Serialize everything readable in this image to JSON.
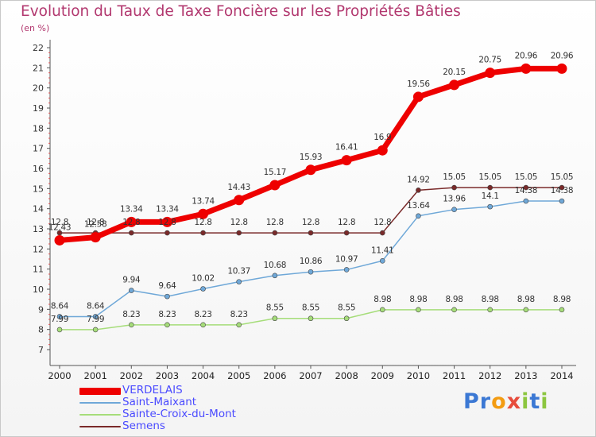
{
  "title": "Evolution du Taux de Taxe Foncière sur les Propriétés Bâties",
  "unit_label": "(en %)",
  "logo": {
    "text": "Proxiti",
    "letters": [
      "P",
      "r",
      "o",
      "x",
      "i",
      "t",
      "i"
    ],
    "letter_colors": [
      "#3b78d4",
      "#3b78d4",
      "#f39c12",
      "#e74c3c",
      "#8cc63f",
      "#3b78d4",
      "#8cc63f"
    ]
  },
  "chart_data": {
    "type": "line",
    "x": [
      "2000",
      "2001",
      "2002",
      "2003",
      "2004",
      "2005",
      "2006",
      "2007",
      "2008",
      "2009",
      "2010",
      "2011",
      "2012",
      "2013",
      "2014"
    ],
    "ylim": [
      7,
      22
    ],
    "yticks": [
      "7",
      "8",
      "9",
      "10",
      "11",
      "12",
      "13",
      "14",
      "15",
      "16",
      "17",
      "18",
      "19",
      "20",
      "21",
      "22"
    ],
    "grid": false,
    "legend_position": "bottom-left",
    "series": [
      {
        "name": "VERDELAIS",
        "color": "#ee0000",
        "values": [
          12.43,
          12.58,
          13.34,
          13.34,
          13.74,
          14.43,
          15.17,
          15.93,
          16.41,
          16.9,
          19.56,
          20.15,
          20.75,
          20.96,
          20.96
        ],
        "labels": [
          "12.43",
          "12.58",
          "13.34",
          "13.34",
          "13.74",
          "14.43",
          "15.17",
          "15.93",
          "16.41",
          "16.9",
          "19.56",
          "20.15",
          "20.75",
          "20.96",
          "20.96"
        ]
      },
      {
        "name": "Saint-Maixant",
        "color": "#6fa8d8",
        "values": [
          8.64,
          8.64,
          9.94,
          9.64,
          10.02,
          10.37,
          10.68,
          10.86,
          10.97,
          11.41,
          13.64,
          13.96,
          14.1,
          14.38,
          14.38
        ],
        "labels": [
          "8.64",
          "8.64",
          "9.94",
          "9.64",
          "10.02",
          "10.37",
          "10.68",
          "10.86",
          "10.97",
          "11.41",
          "13.64",
          "13.96",
          "14.1",
          "14.38",
          "14.38"
        ]
      },
      {
        "name": "Sainte-Croix-du-Mont",
        "color": "#a6dd7a",
        "values": [
          7.99,
          7.99,
          8.23,
          8.23,
          8.23,
          8.23,
          8.55,
          8.55,
          8.55,
          8.98,
          8.98,
          8.98,
          8.98,
          8.98,
          8.98
        ],
        "labels": [
          "7.99",
          "7.99",
          "8.23",
          "8.23",
          "8.23",
          "8.23",
          "8.55",
          "8.55",
          "8.55",
          "8.98",
          "8.98",
          "8.98",
          "8.98",
          "8.98",
          "8.98"
        ]
      },
      {
        "name": "Semens",
        "color": "#7a2a2a",
        "values": [
          12.8,
          12.8,
          12.8,
          12.8,
          12.8,
          12.8,
          12.8,
          12.8,
          12.8,
          12.8,
          14.92,
          15.05,
          15.05,
          15.05,
          15.05
        ],
        "labels": [
          "12.8",
          "12.8",
          "12.8",
          "12.8",
          "12.8",
          "12.8",
          "12.8",
          "12.8",
          "12.8",
          "12.8",
          "14.92",
          "15.05",
          "15.05",
          "15.05",
          "15.05"
        ]
      }
    ]
  }
}
